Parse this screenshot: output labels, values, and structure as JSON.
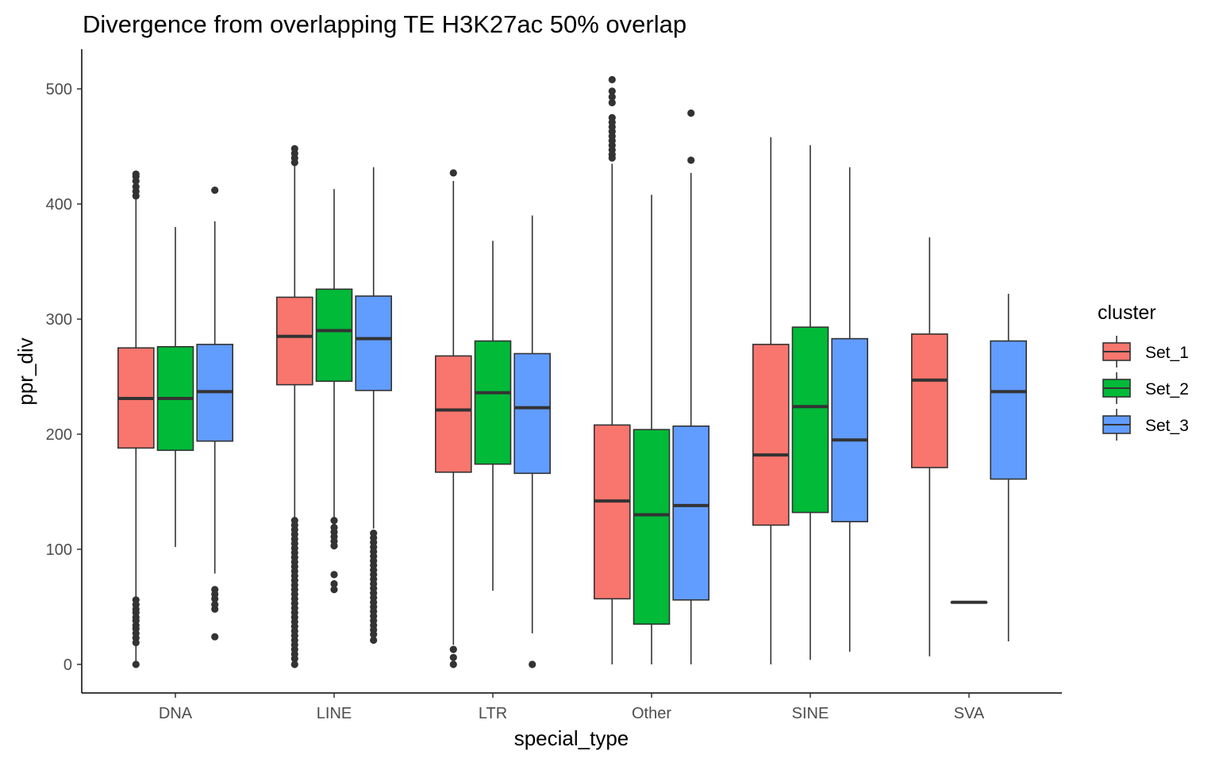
{
  "chart_data": {
    "type": "boxplot",
    "title": "Divergence from overlapping TE H3K27ac 50% overlap",
    "xlabel": "special_type",
    "ylabel": "ppr_div",
    "ylim": [
      -25,
      532
    ],
    "yticks": [
      0,
      100,
      200,
      300,
      400,
      500
    ],
    "ytick_labels": [
      "0",
      "100",
      "200",
      "300",
      "400",
      "500"
    ],
    "categories": [
      "DNA",
      "LINE",
      "LTR",
      "Other",
      "SINE",
      "SVA"
    ],
    "legend": {
      "title": "cluster",
      "position": "right",
      "entries": [
        {
          "name": "Set_1",
          "color": "#F8766D"
        },
        {
          "name": "Set_2",
          "color": "#00BA38"
        },
        {
          "name": "Set_3",
          "color": "#619CFF"
        }
      ]
    },
    "series": [
      {
        "name": "Set_1",
        "color": "#F8766D",
        "boxes": [
          {
            "category": "DNA",
            "low": 0,
            "q1": 188,
            "median": 231,
            "q3": 275,
            "high": 409,
            "outliers": [
              426,
              424,
              420,
              415,
              411,
              407,
              56,
              52,
              48,
              45,
              41,
              38,
              34,
              31,
              27,
              23,
              19,
              0
            ]
          },
          {
            "category": "LINE",
            "low": 124,
            "q1": 243,
            "median": 285,
            "q3": 319,
            "high": 435,
            "outliers": [
              448,
              444,
              440,
              436,
              125,
              121,
              117,
              113,
              109,
              105,
              101,
              97,
              93,
              89,
              85,
              81,
              77,
              73,
              69,
              65,
              61,
              57,
              53,
              49,
              45,
              41,
              37,
              33,
              29,
              25,
              21,
              17,
              13,
              9,
              5,
              0
            ]
          },
          {
            "category": "LTR",
            "low": 17,
            "q1": 167,
            "median": 221,
            "q3": 268,
            "high": 420,
            "outliers": [
              427,
              13,
              6,
              0
            ]
          },
          {
            "category": "Other",
            "low": 0,
            "q1": 57,
            "median": 142,
            "q3": 208,
            "high": 435,
            "outliers": [
              508,
              498,
              493,
              488,
              475,
              471,
              467,
              463,
              459,
              455,
              451,
              447,
              443,
              440
            ]
          },
          {
            "category": "SINE",
            "low": 0,
            "q1": 121,
            "median": 182,
            "q3": 278,
            "high": 458,
            "outliers": []
          },
          {
            "category": "SVA",
            "low": 7,
            "q1": 171,
            "median": 247,
            "q3": 287,
            "high": 371,
            "outliers": []
          }
        ]
      },
      {
        "name": "Set_2",
        "color": "#00BA38",
        "boxes": [
          {
            "category": "DNA",
            "low": 102,
            "q1": 186,
            "median": 231,
            "q3": 276,
            "high": 380,
            "outliers": []
          },
          {
            "category": "LINE",
            "low": 127,
            "q1": 246,
            "median": 290,
            "q3": 326,
            "high": 413,
            "outliers": [
              125,
              119,
              115,
              111,
              107,
              103,
              78,
              70,
              65
            ]
          },
          {
            "category": "LTR",
            "low": 64,
            "q1": 174,
            "median": 236,
            "q3": 281,
            "high": 368,
            "outliers": []
          },
          {
            "category": "Other",
            "low": 0,
            "q1": 35,
            "median": 130,
            "q3": 204,
            "high": 408,
            "outliers": []
          },
          {
            "category": "SINE",
            "low": 4,
            "q1": 132,
            "median": 224,
            "q3": 293,
            "high": 451,
            "outliers": []
          },
          {
            "category": "SVA",
            "low": 54,
            "q1": 54,
            "median": 54,
            "q3": 54,
            "high": 54,
            "outliers": []
          }
        ]
      },
      {
        "name": "Set_3",
        "color": "#619CFF",
        "boxes": [
          {
            "category": "DNA",
            "low": 79,
            "q1": 194,
            "median": 237,
            "q3": 278,
            "high": 385,
            "outliers": [
              412,
              65,
              61,
              57,
              52,
              48,
              24
            ]
          },
          {
            "category": "LINE",
            "low": 118,
            "q1": 238,
            "median": 283,
            "q3": 320,
            "high": 432,
            "outliers": [
              114,
              110,
              106,
              102,
              98,
              94,
              90,
              86,
              82,
              78,
              74,
              70,
              66,
              62,
              58,
              54,
              50,
              46,
              42,
              38,
              34,
              30,
              26,
              21
            ]
          },
          {
            "category": "LTR",
            "low": 27,
            "q1": 166,
            "median": 223,
            "q3": 270,
            "high": 390,
            "outliers": [
              0
            ]
          },
          {
            "category": "Other",
            "low": 0,
            "q1": 56,
            "median": 138,
            "q3": 207,
            "high": 427,
            "outliers": [
              479,
              438
            ]
          },
          {
            "category": "SINE",
            "low": 11,
            "q1": 124,
            "median": 195,
            "q3": 283,
            "high": 432,
            "outliers": []
          },
          {
            "category": "SVA",
            "low": 20,
            "q1": 161,
            "median": 237,
            "q3": 281,
            "high": 322,
            "outliers": []
          }
        ]
      }
    ]
  }
}
